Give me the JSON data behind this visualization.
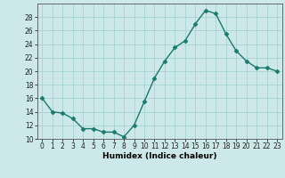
{
  "x": [
    0,
    1,
    2,
    3,
    4,
    5,
    6,
    7,
    8,
    9,
    10,
    11,
    12,
    13,
    14,
    15,
    16,
    17,
    18,
    19,
    20,
    21,
    22,
    23
  ],
  "y": [
    16,
    14,
    13.8,
    13,
    11.5,
    11.5,
    11,
    11,
    10.3,
    12,
    15.5,
    19,
    21.5,
    23.5,
    24.5,
    27,
    29,
    28.5,
    25.5,
    23,
    21.5,
    20.5,
    20.5,
    20
  ],
  "xlabel": "Humidex (Indice chaleur)",
  "ylim": [
    10,
    30
  ],
  "xlim": [
    -0.5,
    23.5
  ],
  "yticks": [
    10,
    12,
    14,
    16,
    18,
    20,
    22,
    24,
    26,
    28
  ],
  "xticks": [
    0,
    1,
    2,
    3,
    4,
    5,
    6,
    7,
    8,
    9,
    10,
    11,
    12,
    13,
    14,
    15,
    16,
    17,
    18,
    19,
    20,
    21,
    22,
    23
  ],
  "line_color": "#1a7a6e",
  "marker_color": "#1a7a6e",
  "bg_color": "#cce8e8",
  "grid_color": "#a8d4d4",
  "tick_label_fontsize": 5.5,
  "xlabel_fontsize": 6.5
}
